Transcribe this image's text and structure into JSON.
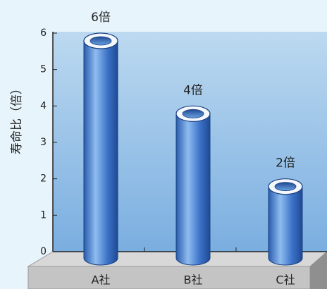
{
  "chart_data": {
    "type": "bar",
    "ylabel": "寿命比（倍）",
    "categories": [
      "A社",
      "B社",
      "C社"
    ],
    "values": [
      6,
      4,
      2
    ],
    "value_labels": [
      "6倍",
      "4倍",
      "2倍"
    ],
    "color": "#3a73c9",
    "ylim": [
      0,
      6
    ],
    "yticks": [
      0,
      1,
      2,
      3,
      4,
      5,
      6
    ]
  }
}
